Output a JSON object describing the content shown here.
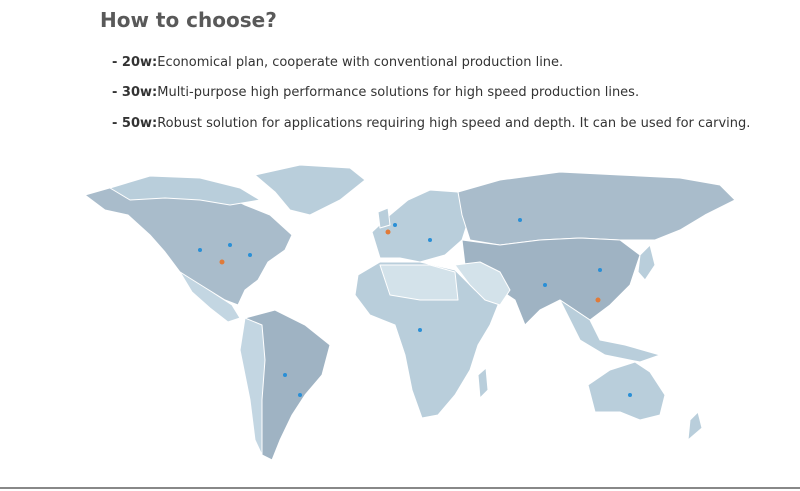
{
  "title": "How to choose?",
  "items": [
    {
      "label": "- 20w:",
      "text": "Economical plan, cooperate with conventional production line."
    },
    {
      "label": "- 30w:",
      "text": "Multi-purpose high performance solutions for high speed production lines."
    },
    {
      "label": "- 50w:",
      "text": "Robust solution for applications requiring high speed and depth. It can be used for carving."
    }
  ]
}
